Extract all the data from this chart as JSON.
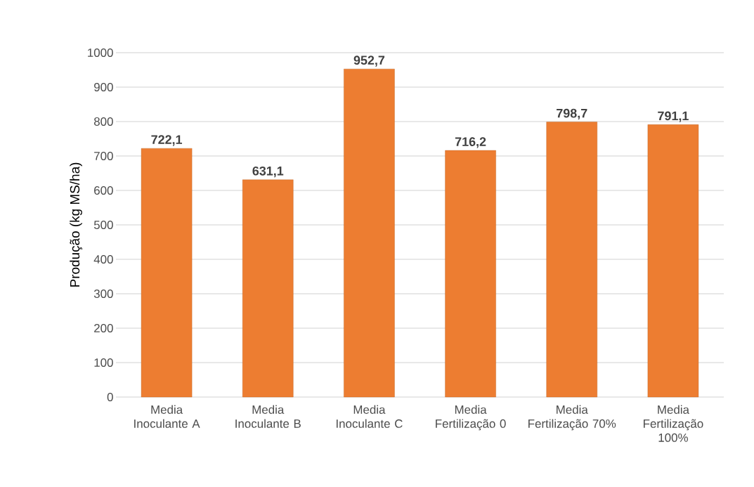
{
  "chart_data": {
    "type": "bar",
    "ylabel": "Produção (kg MS/ha)",
    "categories": [
      "Media Inoculante A",
      "Media Inoculante B",
      "Media Inoculante C",
      "Media Fertilização 0",
      "Media Fertilização 70%",
      "Media Fertilização 100%"
    ],
    "values": [
      722.1,
      631.1,
      952.7,
      716.2,
      798.7,
      791.1
    ],
    "value_labels": [
      "722,1",
      "631,1",
      "952,7",
      "716,2",
      "798,7",
      "791,1"
    ],
    "color": "#ed7d31",
    "ylim": [
      0,
      1000
    ],
    "yticks": [
      0,
      100,
      200,
      300,
      400,
      500,
      600,
      700,
      800,
      900,
      1000
    ],
    "grid": "y"
  }
}
